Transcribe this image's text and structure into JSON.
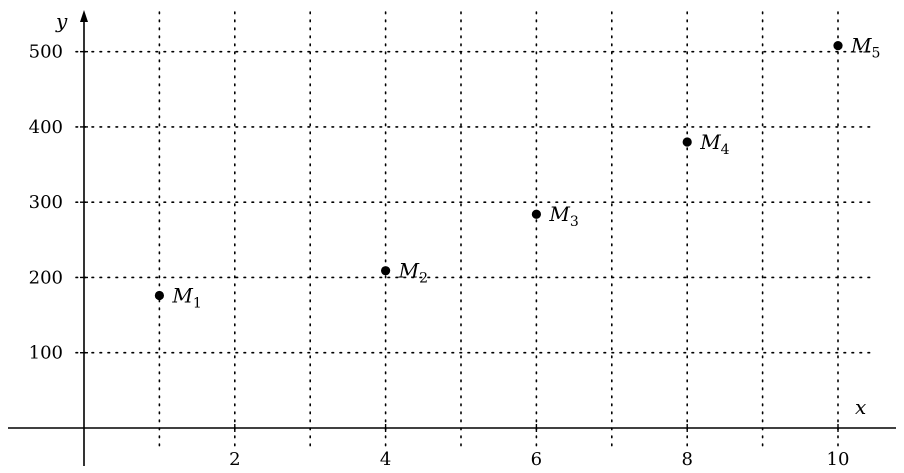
{
  "chart_data": {
    "type": "scatter",
    "xlabel": "x",
    "ylabel": "y",
    "xlim": [
      0,
      11
    ],
    "ylim": [
      0,
      550
    ],
    "x_grid_step": 1,
    "y_grid_step": 100,
    "x_ticks": [
      2,
      4,
      6,
      8,
      10
    ],
    "y_ticks": [
      100,
      200,
      300,
      400,
      500
    ],
    "grid": true,
    "grid_style": "dotted",
    "points": [
      {
        "name": "M",
        "sub": "1",
        "x": 1,
        "y": 176
      },
      {
        "name": "M",
        "sub": "2",
        "x": 4,
        "y": 209
      },
      {
        "name": "M",
        "sub": "3",
        "x": 6,
        "y": 284
      },
      {
        "name": "M",
        "sub": "4",
        "x": 8,
        "y": 380
      },
      {
        "name": "M",
        "sub": "5",
        "x": 10,
        "y": 508
      }
    ]
  }
}
